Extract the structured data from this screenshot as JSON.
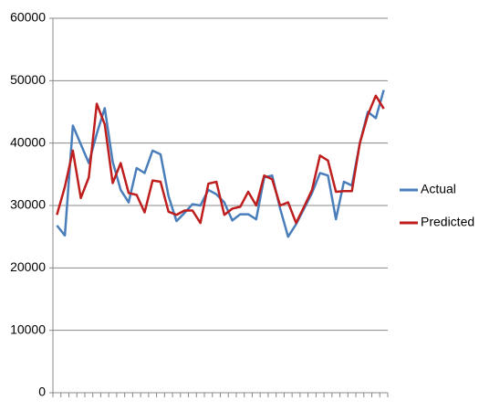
{
  "chart_data": {
    "type": "line",
    "categories": [
      null,
      null,
      null,
      null,
      null,
      null,
      null,
      null,
      null,
      null,
      null,
      null,
      null,
      null,
      null,
      null,
      null,
      null,
      null,
      null,
      null,
      null,
      null,
      null,
      null,
      null,
      null,
      null,
      null,
      null,
      null,
      null,
      null,
      null,
      null,
      null,
      null,
      null,
      null,
      null,
      null,
      null
    ],
    "series": [
      {
        "name": "Actual",
        "color": "#4a7ebb",
        "values": [
          26800,
          25200,
          42800,
          39800,
          36800,
          41500,
          45600,
          37000,
          32500,
          30500,
          36000,
          35200,
          38800,
          38200,
          31500,
          27500,
          28800,
          30200,
          30000,
          32500,
          31800,
          30500,
          27600,
          28600,
          28600,
          27800,
          34500,
          34800,
          29500,
          25000,
          27000,
          29500,
          32000,
          35200,
          34800,
          27800,
          33800,
          33200,
          40000,
          45000,
          44000,
          48500
        ]
      },
      {
        "name": "Predicted",
        "color": "#be1e1e",
        "values": [
          28500,
          33000,
          38800,
          31200,
          34500,
          46300,
          43000,
          33600,
          36800,
          32000,
          31700,
          28900,
          34000,
          33800,
          29000,
          28500,
          29200,
          29200,
          27200,
          33500,
          33800,
          28500,
          29500,
          29800,
          32200,
          30000,
          34800,
          34200,
          30000,
          30500,
          27200,
          29800,
          32500,
          38000,
          37200,
          32200,
          32300,
          32300,
          40000,
          44500,
          47600,
          45500
        ]
      }
    ],
    "ylim": [
      0,
      60000
    ],
    "yticks": [
      0,
      10000,
      20000,
      30000,
      40000,
      50000,
      60000
    ],
    "grid": true,
    "legend": "right"
  }
}
